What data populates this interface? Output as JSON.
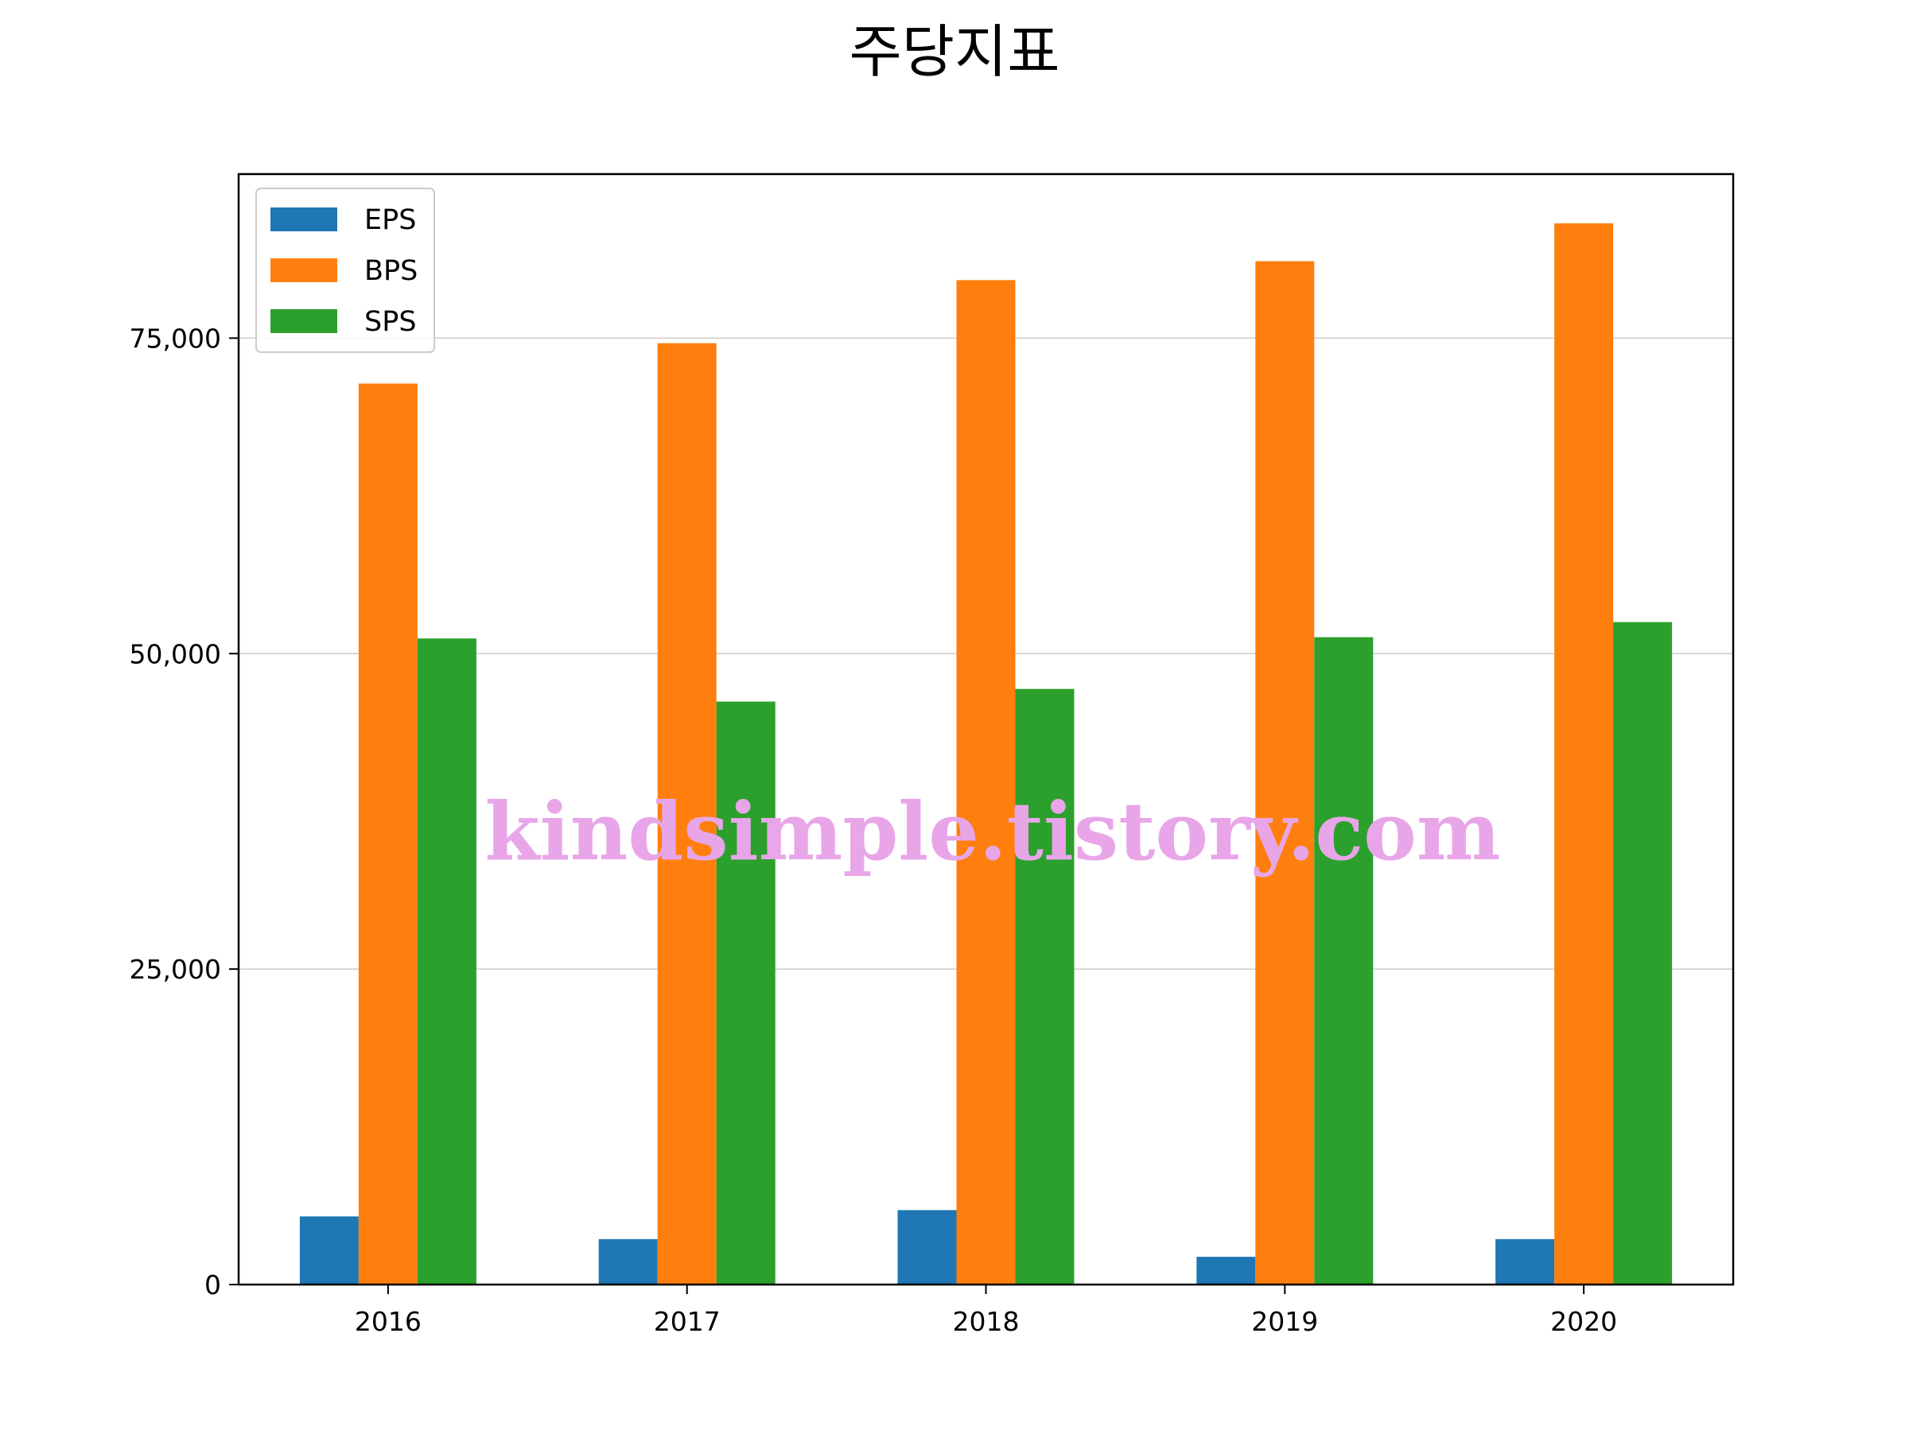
{
  "chart_data": {
    "type": "bar",
    "title": "주당지표",
    "xlabel": "",
    "ylabel": "",
    "categories": [
      "2016",
      "2017",
      "2018",
      "2019",
      "2020"
    ],
    "series": [
      {
        "name": "EPS",
        "color": "#1f77b4",
        "values": [
          5400,
          3600,
          5900,
          2200,
          3600
        ]
      },
      {
        "name": "BPS",
        "color": "#ff7f0e",
        "values": [
          71400,
          74600,
          79600,
          81100,
          84100
        ]
      },
      {
        "name": "SPS",
        "color": "#2ca02c",
        "values": [
          51200,
          46200,
          47200,
          51300,
          52500
        ]
      }
    ],
    "ylim": [
      0,
      88000
    ],
    "yticks": [
      0,
      25000,
      50000,
      75000
    ],
    "ytick_labels": [
      "0",
      "25,000",
      "50,000",
      "75,000"
    ],
    "grid": "y",
    "legend": "top-left",
    "watermark": "kindsimple.tistory.com"
  }
}
